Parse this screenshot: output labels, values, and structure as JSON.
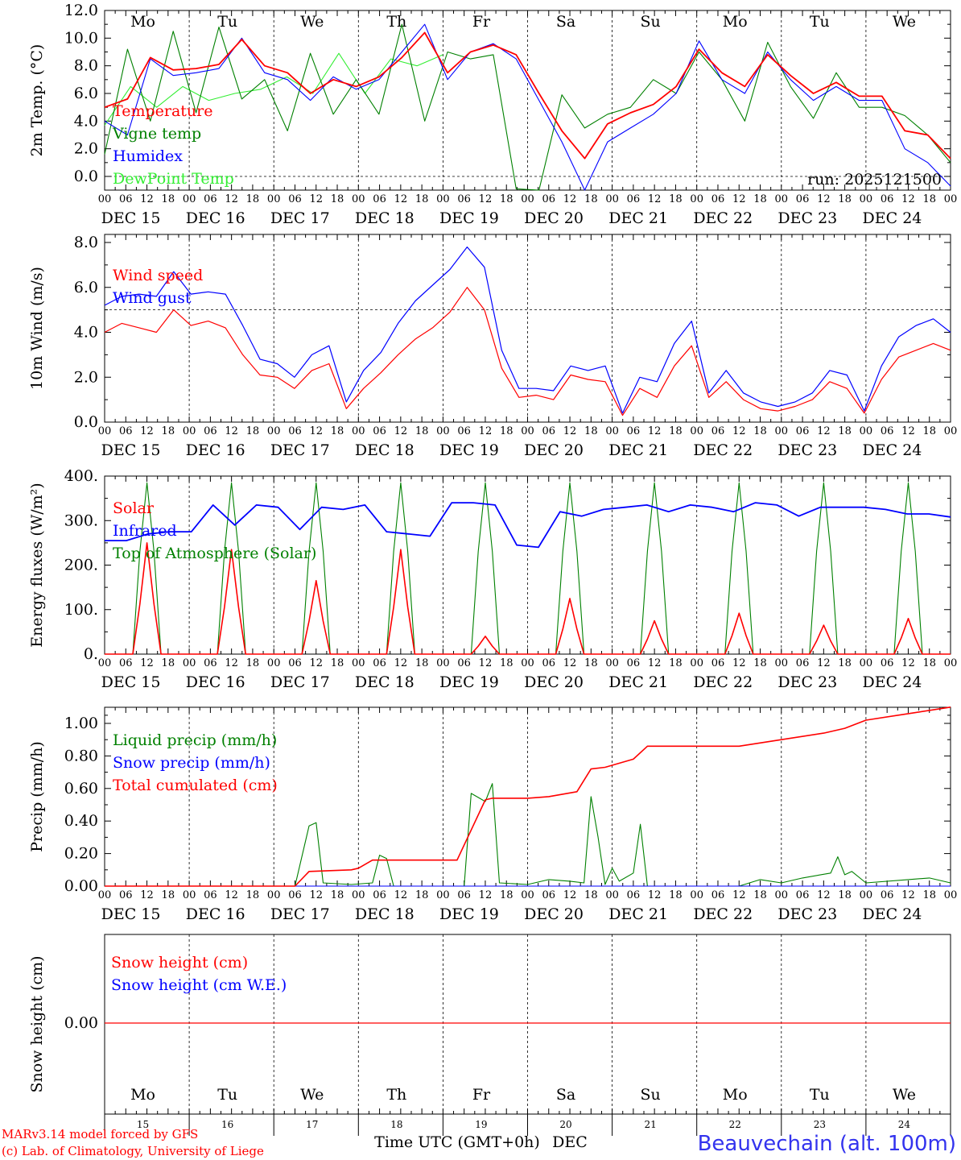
{
  "colors": {
    "red": "#ff0000",
    "green": "#008000",
    "blue": "#0000ff",
    "lightgreen": "#33ee33",
    "weekend": "#ff0000",
    "axis": "#000000",
    "station": "#3333ee"
  },
  "days": [
    {
      "abbr": "Mo",
      "num": "15",
      "date": "DEC 15",
      "weekend": false
    },
    {
      "abbr": "Tu",
      "num": "16",
      "date": "DEC 16",
      "weekend": false
    },
    {
      "abbr": "We",
      "num": "17",
      "date": "DEC 17",
      "weekend": false
    },
    {
      "abbr": "Th",
      "num": "18",
      "date": "DEC 18",
      "weekend": false
    },
    {
      "abbr": "Fr",
      "num": "19",
      "date": "DEC 19",
      "weekend": false
    },
    {
      "abbr": "Sa",
      "num": "20",
      "date": "DEC 20",
      "weekend": true
    },
    {
      "abbr": "Su",
      "num": "21",
      "date": "DEC 21",
      "weekend": true
    },
    {
      "abbr": "Mo",
      "num": "22",
      "date": "DEC 22",
      "weekend": false
    },
    {
      "abbr": "Tu",
      "num": "23",
      "date": "DEC 23",
      "weekend": false
    },
    {
      "abbr": "We",
      "num": "24",
      "date": "DEC 24",
      "weekend": false
    }
  ],
  "hour_labels": [
    "00",
    "06",
    "12",
    "18"
  ],
  "final_hour_label": "00",
  "footer": {
    "model_line": "MARv3.14 model forced by GFS",
    "copyright_line": "(c) Lab. of Climatology, University of Liege",
    "axis_label": "Time UTC (GMT+0h)",
    "month": "DEC",
    "station": "Beauvechain (alt. 100m)"
  },
  "chart_data": [
    {
      "type": "line",
      "title": "2m Temp. (°C)",
      "ylabel": "2m Temp. (°C)",
      "ylim": [
        -1.0,
        12.0
      ],
      "yticks": [
        "12.0",
        "10.0",
        "8.0",
        "6.0",
        "4.0",
        "2.0",
        "0.0"
      ],
      "ytick_values": [
        12,
        10,
        8,
        6,
        4,
        2,
        0
      ],
      "reference_line": 0,
      "run_label": "run: 2025121500",
      "x_hours": [
        0,
        6,
        12,
        18,
        24,
        30,
        36,
        42,
        48,
        54,
        60,
        66,
        72,
        78,
        84,
        90,
        96,
        102,
        108,
        114,
        120,
        126,
        132,
        138,
        144,
        150,
        156,
        162,
        168,
        174,
        180,
        186,
        192,
        198,
        204,
        210,
        216,
        222,
        228,
        234,
        240
      ],
      "series": [
        {
          "name": "Temperature",
          "color": "red",
          "values": [
            5.0,
            5.6,
            8.6,
            7.7,
            7.8,
            8.1,
            9.9,
            8.0,
            7.5,
            6.0,
            7.0,
            6.5,
            7.2,
            8.6,
            10.4,
            7.5,
            9.0,
            9.5,
            8.8,
            6.0,
            3.3,
            1.3,
            3.8,
            4.6,
            5.2,
            6.5,
            9.2,
            7.5,
            6.5,
            8.8,
            7.3,
            6.0,
            6.8,
            5.8,
            5.8,
            3.3,
            3.0,
            1.3
          ]
        },
        {
          "name": "Vigne temp",
          "color": "green",
          "values": [
            1.6,
            9.2,
            4.0,
            10.5,
            4.6,
            10.8,
            5.6,
            7.0,
            3.3,
            8.9,
            4.5,
            7.0,
            4.5,
            11.0,
            4.0,
            9.0,
            8.5,
            8.8,
            -0.9,
            -1.0,
            5.9,
            3.5,
            4.5,
            5.0,
            7.0,
            6.0,
            9.0,
            7.0,
            4.0,
            9.7,
            6.5,
            4.2,
            7.5,
            5.0,
            5.0,
            4.4,
            3.0,
            1.0
          ]
        },
        {
          "name": "Humidex",
          "color": "blue",
          "values": [
            4.0,
            3.0,
            8.5,
            7.3,
            7.5,
            7.8,
            10.0,
            7.5,
            7.0,
            5.5,
            7.2,
            6.3,
            7.0,
            9.0,
            11.0,
            7.0,
            9.0,
            9.6,
            8.5,
            5.5,
            2.5,
            -1.0,
            2.5,
            3.5,
            4.5,
            6.0,
            9.8,
            7.0,
            6.0,
            9.0,
            7.0,
            5.5,
            6.5,
            5.5,
            5.5,
            2.0,
            1.0,
            -0.7
          ]
        },
        {
          "name": "DewPoint Temp",
          "color": "lightgreen",
          "values": [
            3.7,
            6.5,
            5.0,
            6.5,
            5.5,
            6.0,
            6.3,
            7.2,
            6.0,
            8.9,
            6.0,
            8.5,
            8.0,
            8.8
          ]
        }
      ]
    },
    {
      "type": "line",
      "title": "10m Wind (m/s)",
      "ylabel": "10m Wind (m/s)",
      "ylim": [
        0.0,
        8.0
      ],
      "yticks": [
        "8.0",
        "6.0",
        "4.0",
        "2.0",
        "0.0"
      ],
      "ytick_values": [
        8,
        6,
        4,
        2,
        0
      ],
      "reference_line": 5,
      "series": [
        {
          "name": "Wind speed",
          "color": "red",
          "values": [
            4.0,
            4.4,
            4.2,
            4.0,
            5.0,
            4.3,
            4.5,
            4.2,
            3.0,
            2.1,
            2.0,
            1.5,
            2.3,
            2.6,
            0.6,
            1.5,
            2.2,
            3.0,
            3.7,
            4.2,
            4.9,
            6.0,
            5.0,
            2.4,
            1.1,
            1.2,
            1.0,
            2.1,
            1.9,
            1.8,
            0.3,
            1.5,
            1.1,
            2.5,
            3.4,
            1.1,
            1.8,
            1.0,
            0.6,
            0.5,
            0.7,
            1.0,
            1.8,
            1.5,
            0.4,
            1.9,
            2.9,
            3.2,
            3.5,
            3.2
          ]
        },
        {
          "name": "Wind gust",
          "color": "blue",
          "values": [
            5.2,
            5.6,
            5.7,
            5.6,
            6.7,
            5.7,
            5.8,
            5.7,
            4.3,
            2.8,
            2.6,
            2.0,
            3.0,
            3.4,
            0.9,
            2.3,
            3.1,
            4.4,
            5.4,
            6.1,
            6.8,
            7.8,
            6.9,
            3.2,
            1.5,
            1.5,
            1.4,
            2.5,
            2.3,
            2.5,
            0.4,
            2.0,
            1.8,
            3.5,
            4.5,
            1.3,
            2.3,
            1.3,
            0.9,
            0.7,
            0.9,
            1.3,
            2.3,
            2.1,
            0.5,
            2.5,
            3.8,
            4.3,
            4.6,
            4.0
          ]
        }
      ]
    },
    {
      "type": "line",
      "title": "Energy fluxes (W/m²)",
      "ylabel": "Energy fluxes (W/m²)",
      "ylim": [
        0,
        400
      ],
      "yticks": [
        "400.",
        "300.",
        "200.",
        "100.",
        "0."
      ],
      "ytick_values": [
        400,
        300,
        200,
        100,
        0
      ],
      "series": [
        {
          "name": "Solar",
          "color": "red",
          "daily_peaks": [
            250,
            235,
            165,
            235,
            40,
            125,
            75,
            92,
            65,
            80
          ]
        },
        {
          "name": "Infrared",
          "color": "blue",
          "values": [
            255,
            255,
            270,
            275,
            275,
            335,
            290,
            335,
            330,
            280,
            330,
            325,
            335,
            275,
            270,
            265,
            340,
            340,
            335,
            245,
            240,
            320,
            310,
            325,
            330,
            335,
            320,
            335,
            330,
            320,
            340,
            335,
            310,
            330,
            330,
            330,
            325,
            315,
            315,
            308
          ]
        },
        {
          "name": "Top of Atmosphere (Solar)",
          "color": "green",
          "daily_peak": 385
        }
      ]
    },
    {
      "type": "line",
      "title": "Precip (mm/h)",
      "ylabel": "Precip (mm/h)",
      "ylim": [
        0.0,
        1.1
      ],
      "yticks": [
        "1.00",
        "0.80",
        "0.60",
        "0.40",
        "0.20",
        "0.00"
      ],
      "ytick_values": [
        1.0,
        0.8,
        0.6,
        0.4,
        0.2,
        0.0
      ],
      "series": [
        {
          "name": "Liquid precip (mm/h)",
          "color": "green",
          "points": [
            [
              0,
              0
            ],
            [
              54,
              0
            ],
            [
              58,
              0.37
            ],
            [
              60,
              0.39
            ],
            [
              62,
              0.02
            ],
            [
              70,
              0.01
            ],
            [
              76,
              0.02
            ],
            [
              78,
              0.19
            ],
            [
              80,
              0.17
            ],
            [
              82,
              0.0
            ],
            [
              102,
              0.0
            ],
            [
              104,
              0.57
            ],
            [
              108,
              0.52
            ],
            [
              110,
              0.63
            ],
            [
              112,
              0.02
            ],
            [
              120,
              0.01
            ],
            [
              126,
              0.04
            ],
            [
              132,
              0.03
            ],
            [
              136,
              0.02
            ],
            [
              138,
              0.55
            ],
            [
              140,
              0.3
            ],
            [
              142,
              0.01
            ],
            [
              144,
              0.11
            ],
            [
              146,
              0.03
            ],
            [
              150,
              0.08
            ],
            [
              152,
              0.38
            ],
            [
              154,
              0.0
            ],
            [
              180,
              0.0
            ],
            [
              186,
              0.04
            ],
            [
              192,
              0.02
            ],
            [
              198,
              0.05
            ],
            [
              206,
              0.08
            ],
            [
              208,
              0.18
            ],
            [
              210,
              0.07
            ],
            [
              212,
              0.09
            ],
            [
              216,
              0.02
            ],
            [
              228,
              0.04
            ],
            [
              234,
              0.05
            ],
            [
              240,
              0.02
            ]
          ]
        },
        {
          "name": "Snow precip (mm/h)",
          "color": "blue",
          "points": [
            [
              0,
              0
            ],
            [
              240,
              0
            ]
          ]
        },
        {
          "name": "Total cumulated (cm)",
          "color": "red",
          "points": [
            [
              0,
              0.0
            ],
            [
              54,
              0.0
            ],
            [
              58,
              0.09
            ],
            [
              70,
              0.1
            ],
            [
              72,
              0.11
            ],
            [
              76,
              0.16
            ],
            [
              96,
              0.16
            ],
            [
              100,
              0.16
            ],
            [
              108,
              0.53
            ],
            [
              110,
              0.54
            ],
            [
              120,
              0.54
            ],
            [
              126,
              0.55
            ],
            [
              134,
              0.58
            ],
            [
              138,
              0.72
            ],
            [
              142,
              0.73
            ],
            [
              150,
              0.78
            ],
            [
              154,
              0.86
            ],
            [
              180,
              0.86
            ],
            [
              192,
              0.9
            ],
            [
              204,
              0.94
            ],
            [
              210,
              0.97
            ],
            [
              216,
              1.02
            ],
            [
              228,
              1.06
            ],
            [
              240,
              1.1
            ]
          ]
        }
      ]
    },
    {
      "type": "line",
      "title": "Snow height (cm)",
      "ylabel": "Snow height (cm)",
      "yticks": [
        "0.00"
      ],
      "ytick_values": [
        0
      ],
      "series": [
        {
          "name": "Snow height (cm)",
          "color": "red",
          "points": [
            [
              0,
              0
            ],
            [
              240,
              0
            ]
          ]
        },
        {
          "name": "Snow height (cm W.E.)",
          "color": "blue",
          "points": []
        }
      ]
    }
  ]
}
